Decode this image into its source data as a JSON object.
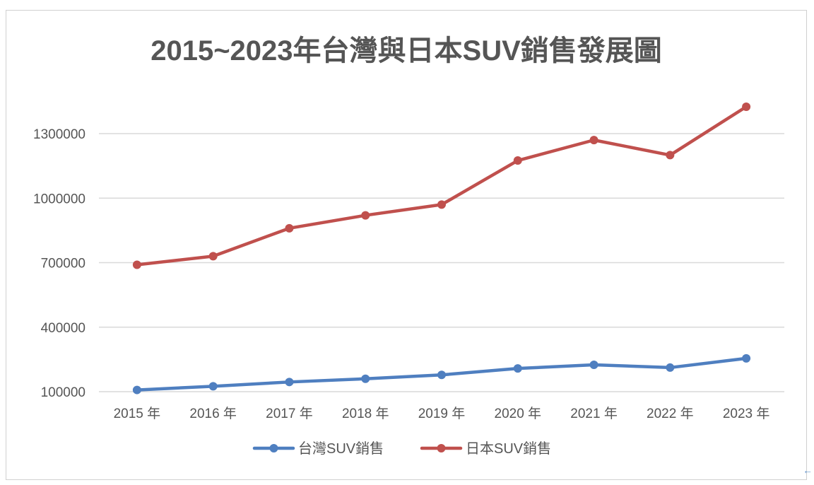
{
  "chart_data": {
    "type": "line",
    "title": "2015~2023年台灣與日本SUV銷售發展圖",
    "categories": [
      "2015 年",
      "2016 年",
      "2017 年",
      "2018 年",
      "2019 年",
      "2020 年",
      "2021 年",
      "2022 年",
      "2023 年"
    ],
    "yticks": [
      100000,
      400000,
      700000,
      1000000,
      1300000
    ],
    "ytick_labels": [
      "100000",
      "400000",
      "700000",
      "1000000",
      "1300000"
    ],
    "ylim": [
      100000,
      1400000
    ],
    "grid": true,
    "legend_position": "bottom",
    "series": [
      {
        "name": "台灣SUV銷售",
        "color": "#4f7fc0",
        "values": [
          108000,
          125000,
          145000,
          160000,
          178000,
          208000,
          225000,
          212000,
          255000
        ]
      },
      {
        "name": "日本SUV銷售",
        "color": "#c0504d",
        "values": [
          690000,
          730000,
          860000,
          920000,
          970000,
          1175000,
          1270000,
          1200000,
          1425000
        ]
      }
    ]
  },
  "colors": {
    "gridline": "#d9d9d9",
    "axis_text": "#555555",
    "title_text": "#555555",
    "frame": "#d0d0d0"
  },
  "icons": {
    "scroll_arrow": "arrow-left-icon"
  },
  "scroll_arrow_glyph": "←"
}
